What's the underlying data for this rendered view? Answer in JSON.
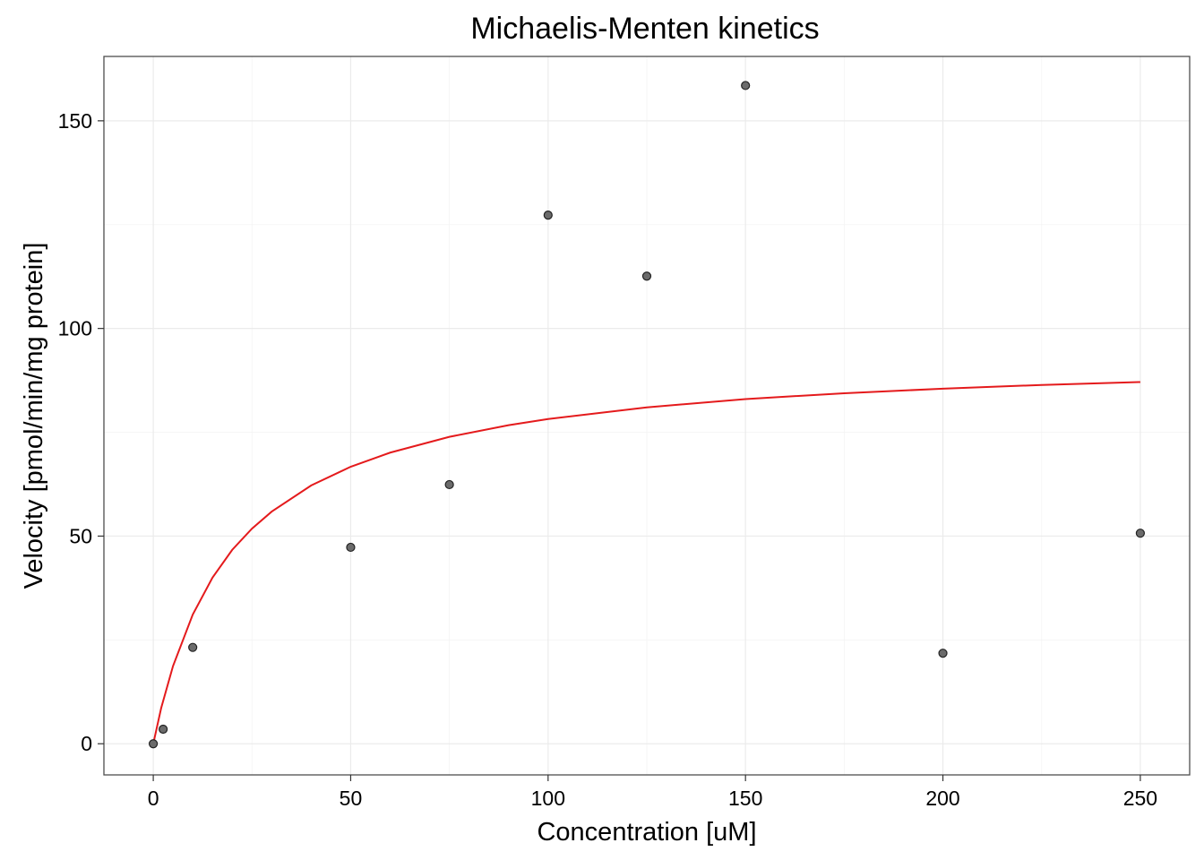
{
  "chart_data": {
    "type": "scatter",
    "title": "Michaelis-Menten kinetics",
    "xlabel": "Concentration [uM]",
    "ylabel": "Velocity [pmol/min/mg protein]",
    "xlim": [
      -12.5,
      262.5
    ],
    "ylim": [
      -7.5,
      165.5
    ],
    "x_ticks": [
      0,
      50,
      100,
      150,
      200,
      250
    ],
    "x_tick_labels": [
      "0",
      "50",
      "100",
      "150",
      "200",
      "250"
    ],
    "y_ticks": [
      0,
      50,
      100,
      150
    ],
    "y_tick_labels": [
      "0",
      "50",
      "100",
      "150"
    ],
    "grid": true,
    "legend": "none",
    "series": [
      {
        "type": "scatter",
        "x": [
          0,
          2.5,
          10,
          50,
          75,
          100,
          125,
          150,
          200,
          250
        ],
        "y": [
          0,
          3.5,
          23.2,
          47.3,
          62.4,
          127.3,
          112.6,
          158.5,
          21.8,
          50.7
        ],
        "color": "#6b6b6b"
      },
      {
        "type": "line",
        "x": [
          0,
          2,
          5,
          10,
          15,
          20,
          25,
          30,
          40,
          50,
          60,
          75,
          90,
          100,
          125,
          150,
          175,
          200,
          225,
          250
        ],
        "y": [
          0,
          8.6,
          18.7,
          31.1,
          40.0,
          46.7,
          51.8,
          55.9,
          62.2,
          66.7,
          70.1,
          73.9,
          76.7,
          78.2,
          81.0,
          83.0,
          84.4,
          85.5,
          86.4,
          87.1
        ],
        "color": "#e41a1c"
      }
    ]
  }
}
